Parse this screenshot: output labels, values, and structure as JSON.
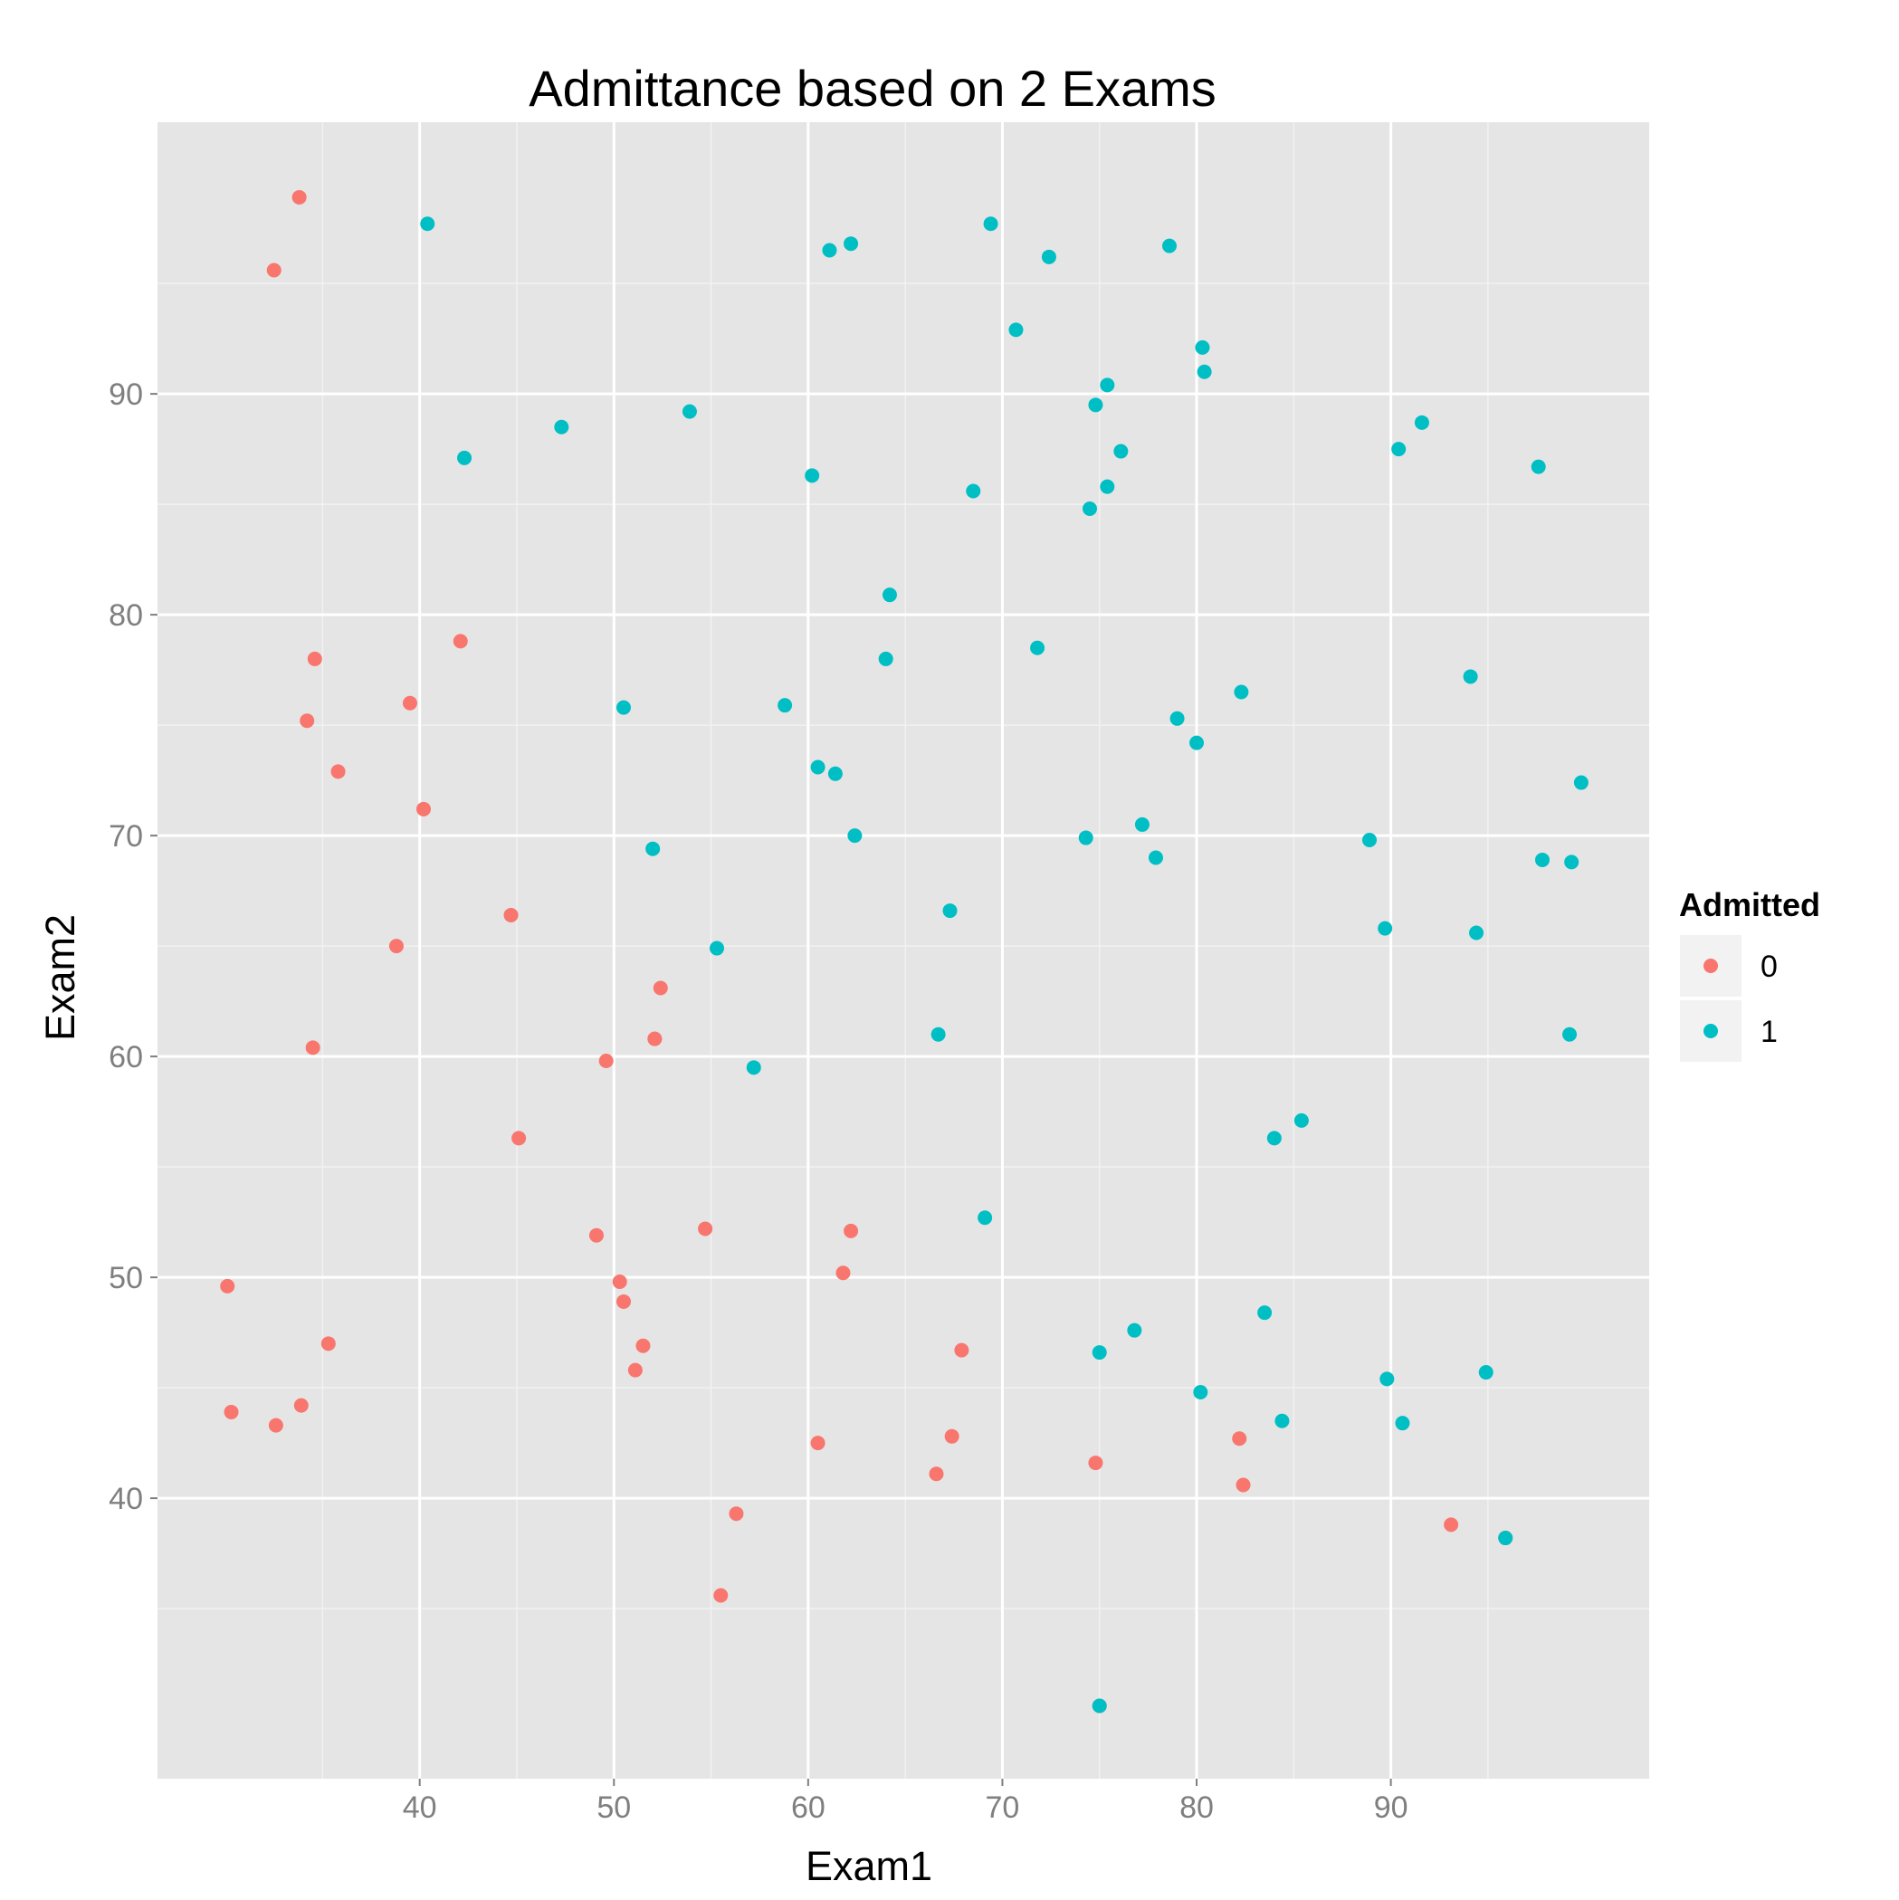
{
  "chart_data": {
    "type": "scatter",
    "title": "Admittance based on 2 Exams",
    "xlabel": "Exam1",
    "ylabel": "Exam2",
    "xlim": [
      26.5,
      103.3
    ],
    "ylim": [
      27.3,
      102.3
    ],
    "x_ticks": [
      40,
      50,
      60,
      70,
      80,
      90
    ],
    "y_ticks": [
      40,
      50,
      60,
      70,
      80,
      90
    ],
    "x_tick_labels": [
      "40",
      "50",
      "60",
      "70",
      "80",
      "90"
    ],
    "y_tick_labels": [
      "40",
      "50",
      "60",
      "70",
      "80",
      "90"
    ],
    "grid": true,
    "legend": {
      "title": "Admitted",
      "position": "right"
    },
    "series": [
      {
        "name": "0",
        "color": "#F8766D",
        "points": [
          [
            34.6,
            78.0
          ],
          [
            30.3,
            43.9
          ],
          [
            35.8,
            72.9
          ],
          [
            45.1,
            56.3
          ],
          [
            95.9,
            38.2
          ],
          [
            75.0,
            30.6
          ],
          [
            39.5,
            76.0
          ],
          [
            67.9,
            46.7
          ],
          [
            67.4,
            42.8
          ],
          [
            33.9,
            44.2
          ],
          [
            32.6,
            43.3
          ],
          [
            33.8,
            98.9
          ],
          [
            34.5,
            60.4
          ],
          [
            40.2,
            71.2
          ],
          [
            55.5,
            35.6
          ],
          [
            60.5,
            42.5
          ],
          [
            56.3,
            39.3
          ],
          [
            52.1,
            60.8
          ],
          [
            61.8,
            50.2
          ],
          [
            50.5,
            48.9
          ],
          [
            49.6,
            59.8
          ],
          [
            34.2,
            75.2
          ],
          [
            51.5,
            46.9
          ],
          [
            82.4,
            40.6
          ],
          [
            38.8,
            65.0
          ],
          [
            44.7,
            66.4
          ],
          [
            51.1,
            45.8
          ],
          [
            50.3,
            49.8
          ],
          [
            30.1,
            49.6
          ],
          [
            35.3,
            47.0
          ],
          [
            32.5,
            95.6
          ],
          [
            49.1,
            51.9
          ],
          [
            74.8,
            41.6
          ],
          [
            93.1,
            38.8
          ],
          [
            54.7,
            52.2
          ],
          [
            62.2,
            52.1
          ],
          [
            82.2,
            42.7
          ],
          [
            66.6,
            41.1
          ],
          [
            42.1,
            78.8
          ],
          [
            52.4,
            63.1
          ],
          [
            52.1,
            60.8
          ]
        ]
      },
      {
        "name": "1",
        "color": "#00BFC4",
        "points": [
          [
            60.2,
            86.3
          ],
          [
            79.0,
            75.3
          ],
          [
            61.1,
            96.5
          ],
          [
            75.0,
            46.6
          ],
          [
            76.1,
            87.4
          ],
          [
            84.4,
            43.5
          ],
          [
            95.9,
            38.2
          ],
          [
            75.0,
            30.6
          ],
          [
            82.3,
            76.5
          ],
          [
            69.4,
            97.7
          ],
          [
            53.9,
            89.2
          ],
          [
            69.1,
            52.7
          ],
          [
            70.7,
            92.9
          ],
          [
            76.8,
            47.6
          ],
          [
            89.7,
            65.8
          ],
          [
            90.4,
            87.5
          ],
          [
            94.1,
            77.2
          ],
          [
            94.4,
            65.6
          ],
          [
            83.5,
            48.4
          ],
          [
            80.3,
            92.1
          ],
          [
            99.3,
            68.8
          ],
          [
            55.3,
            64.9
          ],
          [
            74.5,
            84.8
          ],
          [
            62.2,
            96.8
          ],
          [
            77.2,
            70.5
          ],
          [
            97.6,
            86.7
          ],
          [
            62.4,
            70.0
          ],
          [
            77.9,
            69.0
          ],
          [
            80.2,
            44.8
          ],
          [
            88.9,
            69.8
          ],
          [
            84.0,
            56.3
          ],
          [
            85.4,
            57.1
          ],
          [
            94.9,
            45.7
          ],
          [
            47.3,
            88.5
          ],
          [
            91.6,
            88.7
          ],
          [
            89.8,
            45.4
          ],
          [
            72.4,
            96.2
          ],
          [
            78.6,
            96.7
          ],
          [
            90.6,
            43.4
          ],
          [
            97.8,
            68.9
          ],
          [
            75.4,
            90.4
          ],
          [
            64.2,
            80.9
          ],
          [
            57.2,
            59.5
          ],
          [
            99.8,
            72.4
          ],
          [
            50.5,
            75.8
          ],
          [
            60.5,
            73.1
          ],
          [
            58.8,
            75.9
          ],
          [
            99.2,
            61.0
          ],
          [
            64.0,
            78.0
          ],
          [
            40.4,
            97.7
          ],
          [
            42.3,
            87.1
          ],
          [
            61.4,
            72.8
          ],
          [
            52.0,
            69.4
          ],
          [
            74.3,
            69.9
          ],
          [
            67.3,
            66.6
          ],
          [
            71.8,
            78.5
          ],
          [
            66.7,
            61.0
          ],
          [
            75.4,
            85.8
          ],
          [
            80.4,
            91.0
          ],
          [
            68.5,
            85.6
          ],
          [
            74.8,
            89.5
          ],
          [
            80.0,
            74.2
          ]
        ]
      }
    ]
  }
}
